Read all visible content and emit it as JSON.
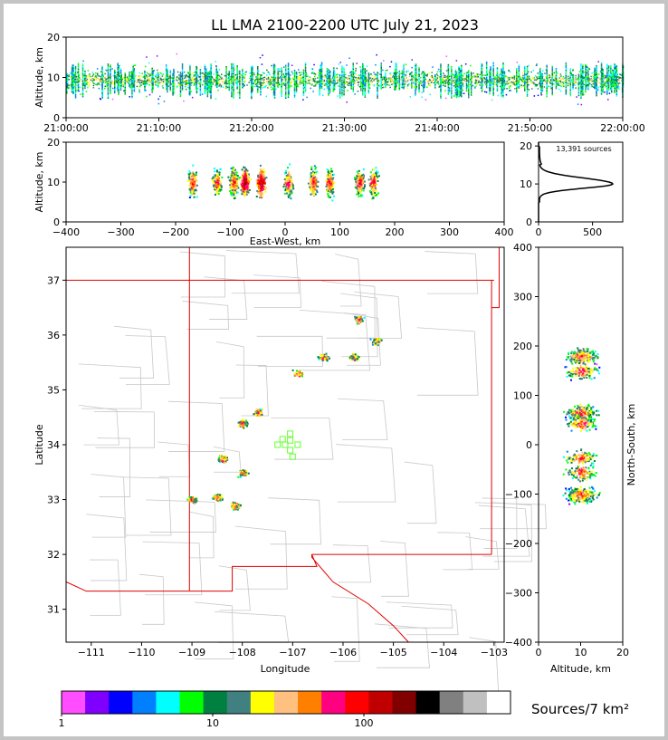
{
  "title": "LL LMA 2100-2200 UTC July 21, 2023",
  "colorbar": {
    "label": "Sources/7 km²",
    "tick_labels": [
      "1",
      "10",
      "100"
    ],
    "colors": [
      "#ff4dff",
      "#8000ff",
      "#0000ff",
      "#0080ff",
      "#00ffff",
      "#00ff00",
      "#008040",
      "#408080",
      "#ffff00",
      "#ffc080",
      "#ff8000",
      "#ff0080",
      "#ff0000",
      "#c00000",
      "#800000",
      "#000000",
      "#808080",
      "#c0c0c0",
      "#ffffff"
    ]
  },
  "chart_data": [
    {
      "id": "time-height",
      "type": "scatter",
      "xlabel": "",
      "ylabel": "Altitude, km",
      "x_tick_labels": [
        "21:00:00",
        "21:10:00",
        "21:20:00",
        "21:30:00",
        "21:40:00",
        "21:50:00",
        "22:00:00"
      ],
      "y_ticks": [
        0,
        10,
        20
      ],
      "xlim": [
        "21:00:00",
        "22:00:00"
      ],
      "ylim": [
        0,
        20
      ],
      "typical_altitude_km": [
        5,
        14
      ]
    },
    {
      "id": "east-west-altitude",
      "type": "scatter",
      "xlabel": "East-West, km",
      "ylabel": "Altitude, km",
      "x_ticks": [
        -400,
        -300,
        -200,
        -100,
        0,
        100,
        200,
        300,
        400
      ],
      "y_ticks": [
        0,
        10,
        20
      ],
      "xlim": [
        -400,
        400
      ],
      "ylim": [
        0,
        20
      ],
      "clusters_x_km": [
        -170,
        -125,
        -95,
        -75,
        -45,
        5,
        50,
        80,
        135,
        160
      ]
    },
    {
      "id": "altitude-histogram",
      "type": "line",
      "annotation": "13,391 sources",
      "x_ticks": [
        0,
        500
      ],
      "y_ticks": [
        0,
        10,
        20
      ],
      "xlim": [
        0,
        780
      ],
      "ylim": [
        0,
        21
      ],
      "peak": {
        "altitude_km": 10,
        "count": 680
      }
    },
    {
      "id": "plan-view",
      "type": "scatter",
      "xlabel": "Longitude",
      "ylabel": "Latitude",
      "x_ticks": [
        -111,
        -110,
        -109,
        -108,
        -107,
        -106,
        -105,
        -104,
        -103
      ],
      "y_ticks": [
        31,
        32,
        33,
        34,
        35,
        36,
        37
      ],
      "xlim": [
        -111.5,
        -102.8
      ],
      "ylim": [
        30.4,
        37.6
      ],
      "cells": [
        {
          "lon": -109.0,
          "lat": 33.0
        },
        {
          "lon": -108.5,
          "lat": 33.05
        },
        {
          "lon": -108.15,
          "lat": 32.9
        },
        {
          "lon": -108.0,
          "lat": 33.5
        },
        {
          "lon": -107.7,
          "lat": 34.6
        },
        {
          "lon": -108.0,
          "lat": 34.4
        },
        {
          "lon": -108.4,
          "lat": 33.75
        },
        {
          "lon": -106.9,
          "lat": 35.3
        },
        {
          "lon": -106.4,
          "lat": 35.6
        },
        {
          "lon": -105.8,
          "lat": 35.6
        },
        {
          "lon": -105.35,
          "lat": 35.9
        },
        {
          "lon": -105.7,
          "lat": 36.3
        }
      ],
      "stations": [
        {
          "lon": -107.05,
          "lat": 34.2
        },
        {
          "lon": -107.05,
          "lat": 34.08
        },
        {
          "lon": -106.9,
          "lat": 34.0
        },
        {
          "lon": -107.2,
          "lat": 34.1
        },
        {
          "lon": -107.3,
          "lat": 34.0
        },
        {
          "lon": -107.15,
          "lat": 34.0
        },
        {
          "lon": -107.05,
          "lat": 33.9
        },
        {
          "lon": -107.0,
          "lat": 33.78
        }
      ]
    },
    {
      "id": "north-south-altitude",
      "type": "scatter",
      "xlabel": "Altitude, km",
      "ylabel": "North-South, km",
      "x_ticks": [
        0,
        10,
        20
      ],
      "y_ticks": [
        -400,
        -300,
        -200,
        -100,
        0,
        100,
        200,
        300,
        400
      ],
      "xlim": [
        0,
        20
      ],
      "ylim": [
        -400,
        400
      ],
      "clusters_y_km": [
        180,
        150,
        65,
        45,
        -25,
        -55,
        -100
      ]
    }
  ]
}
